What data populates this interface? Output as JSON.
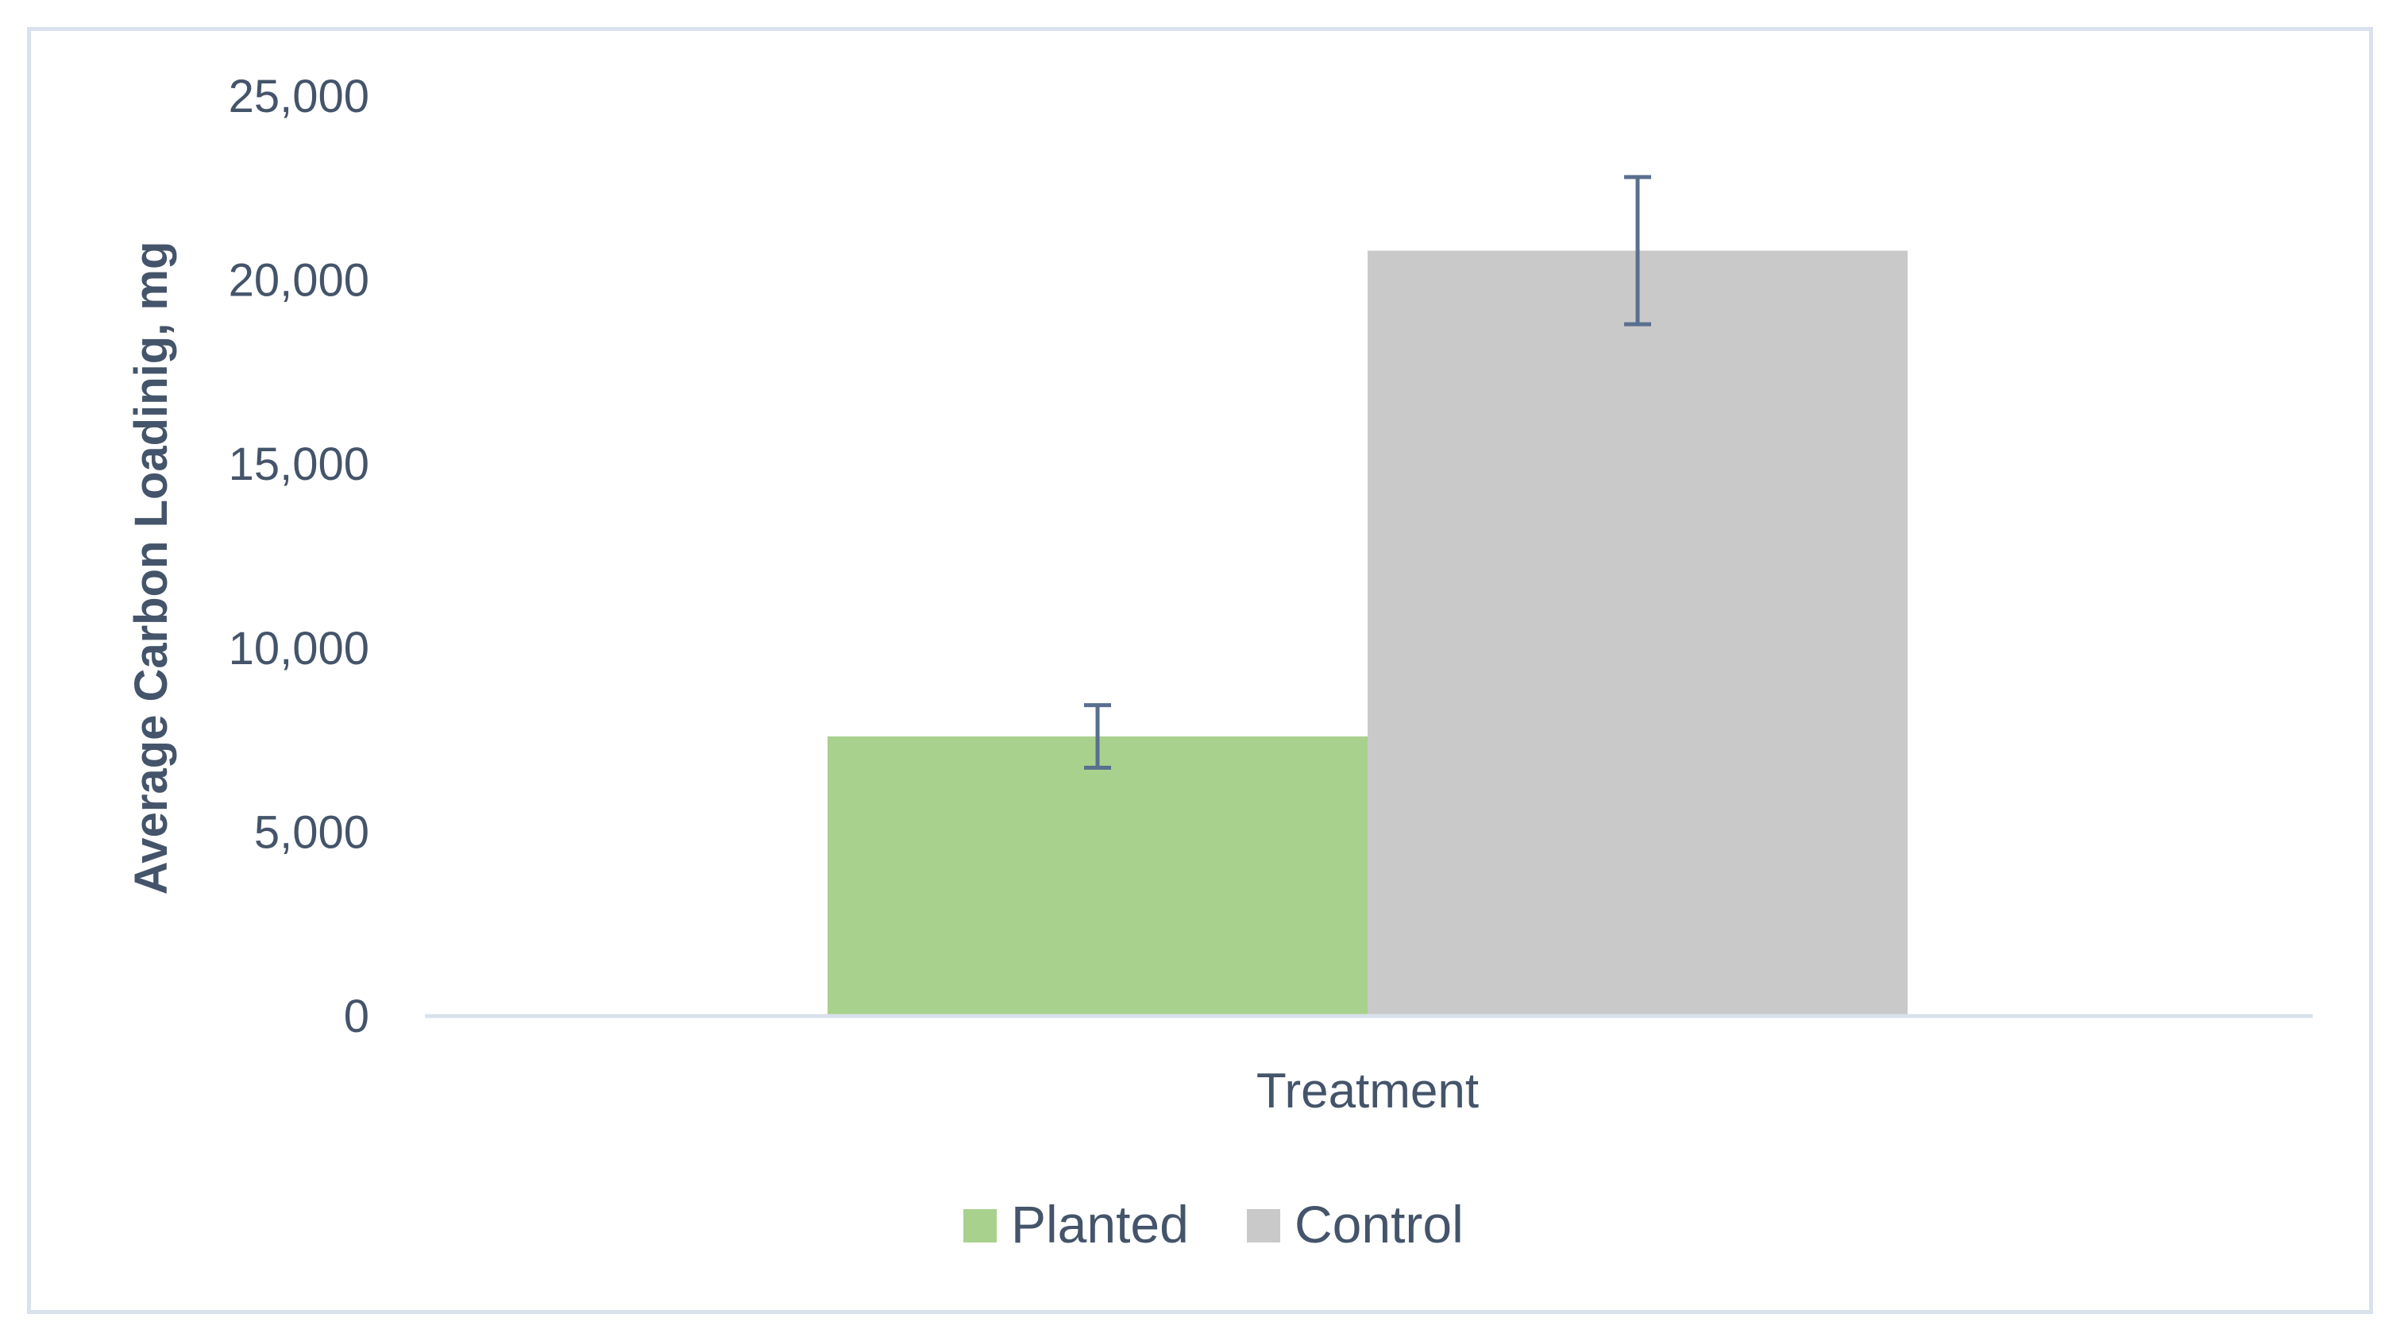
{
  "chart_data": {
    "type": "bar",
    "xlabel": "Treatment",
    "ylabel": "Average Carbon Loadinig, mg",
    "ylim": [
      0,
      25000
    ],
    "yticks": [
      0,
      5000,
      10000,
      15000,
      20000,
      25000
    ],
    "ytick_labels": [
      "0",
      "5,000",
      "10,000",
      "15,000",
      "20,000",
      "25,000"
    ],
    "categories": [
      "Treatment"
    ],
    "series": [
      {
        "name": "Planted",
        "values": [
          7600
        ],
        "error": [
          850
        ],
        "color": "#a9d18e"
      },
      {
        "name": "Control",
        "values": [
          20800
        ],
        "error": [
          2000
        ],
        "color": "#c9c9c9"
      }
    ],
    "error_bar_color": "#5a6f8f",
    "axis_color": "#d9e1ec",
    "grid": false,
    "legend_position": "bottom"
  }
}
